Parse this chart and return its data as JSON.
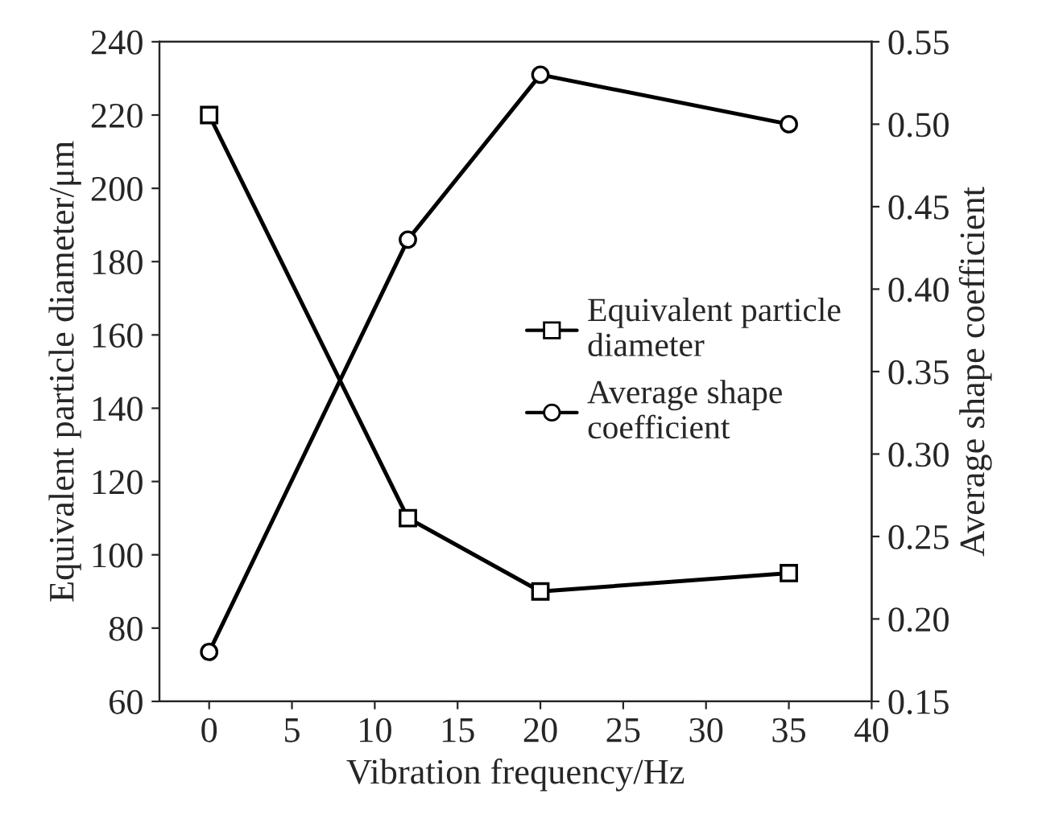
{
  "chart_data": {
    "type": "line",
    "xlabel": "Vibration frequency/Hz",
    "ylabel": "Equivalent particle diameter/μm",
    "y2label": "Average shape coefficient",
    "x": [
      0,
      12,
      20,
      35
    ],
    "series": [
      {
        "name": "Equivalent particle\ndiameter",
        "color": "#000000",
        "values": [
          220,
          110,
          90,
          95
        ],
        "marker": "square"
      },
      {
        "name": "Average shape\ncoefficient",
        "color": "#000000",
        "values": [
          0.18,
          0.43,
          0.53,
          0.5
        ],
        "marker": "circle",
        "axis": "y2"
      }
    ],
    "xlim": [
      -3,
      40
    ],
    "xticks": [
      0,
      5,
      10,
      15,
      20,
      25,
      30,
      35,
      40
    ],
    "ylim": [
      60,
      240
    ],
    "yticks": [
      60,
      80,
      100,
      120,
      140,
      160,
      180,
      200,
      220,
      240
    ],
    "y2lim": [
      0.15,
      0.55
    ],
    "y2ticks": [
      {
        "value": 0.15,
        "label": "0.15"
      },
      {
        "value": 0.2,
        "label": "0.20"
      },
      {
        "value": 0.25,
        "label": "0.25"
      },
      {
        "value": 0.3,
        "label": "0.30"
      },
      {
        "value": 0.35,
        "label": "0.35"
      },
      {
        "value": 0.4,
        "label": "0.40"
      },
      {
        "value": 0.45,
        "label": "0.45"
      },
      {
        "value": 0.5,
        "label": "0.50"
      },
      {
        "value": 0.55,
        "label": "0.55"
      }
    ],
    "legend": "center right",
    "grid": false,
    "line_style": "solid"
  }
}
